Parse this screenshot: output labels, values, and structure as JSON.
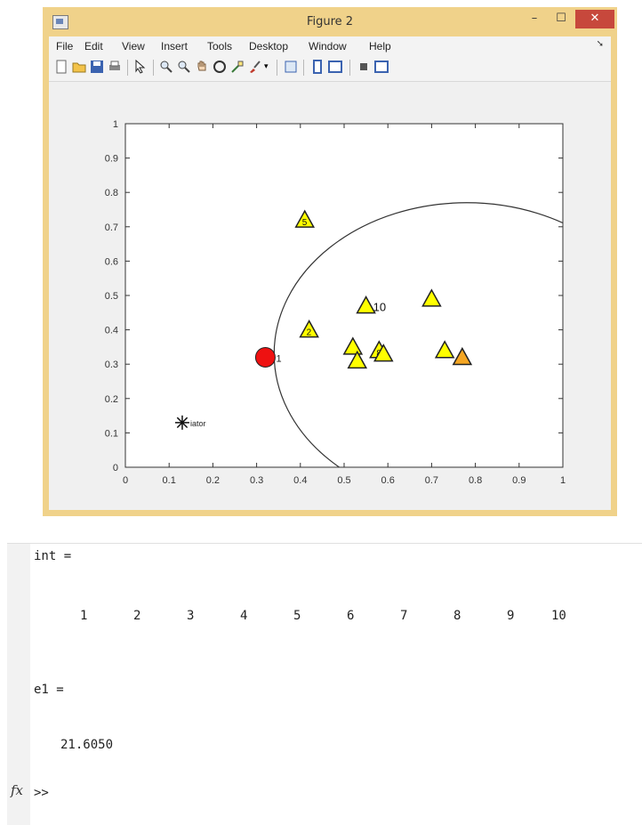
{
  "window": {
    "title": "Figure 2"
  },
  "menu": {
    "items": [
      "File",
      "Edit",
      "View",
      "Insert",
      "Tools",
      "Desktop",
      "Window",
      "Help"
    ]
  },
  "toolbar": {
    "icons": [
      "new-figure-icon",
      "open-file-icon",
      "save-icon",
      "print-icon",
      "edit-plot-icon",
      "zoom-in-icon",
      "zoom-out-icon",
      "pan-icon",
      "rotate-3d-icon",
      "data-cursor-icon",
      "brush-icon",
      "link-plot-icon",
      "colorbar-icon",
      "legend-icon",
      "hide-plot-tools-icon",
      "show-plot-tools-icon"
    ]
  },
  "chart_data": {
    "type": "scatter",
    "title": "",
    "xlabel": "",
    "ylabel": "",
    "xlim": [
      0,
      1
    ],
    "ylim": [
      0,
      1
    ],
    "x_ticks": [
      "0",
      "0.1",
      "0.2",
      "0.3",
      "0.4",
      "0.5",
      "0.6",
      "0.7",
      "0.8",
      "0.9",
      "1"
    ],
    "y_ticks": [
      "0",
      "0.1",
      "0.2",
      "0.3",
      "0.4",
      "0.5",
      "0.6",
      "0.7",
      "0.8",
      "0.9",
      "1"
    ],
    "grid": false,
    "circle": {
      "center": [
        0.78,
        0.33
      ],
      "radius": 0.44
    },
    "initiator": {
      "x": 0.13,
      "y": 0.13,
      "label": "iator"
    },
    "head_node": {
      "x": 0.32,
      "y": 0.32,
      "label": "1"
    },
    "nodes": [
      {
        "x": 0.41,
        "y": 0.72,
        "label": "5",
        "color": "#ffff00"
      },
      {
        "x": 0.42,
        "y": 0.4,
        "label": "2",
        "color": "#ffff00"
      },
      {
        "x": 0.52,
        "y": 0.35,
        "label": "",
        "color": "#ffff00"
      },
      {
        "x": 0.53,
        "y": 0.31,
        "label": "",
        "color": "#ffff00"
      },
      {
        "x": 0.55,
        "y": 0.47,
        "label": "10",
        "color": "#ffff00"
      },
      {
        "x": 0.58,
        "y": 0.34,
        "label": "8",
        "color": "#ffff00"
      },
      {
        "x": 0.59,
        "y": 0.33,
        "label": "",
        "color": "#ffff00"
      },
      {
        "x": 0.7,
        "y": 0.49,
        "label": "",
        "color": "#ffff00"
      },
      {
        "x": 0.73,
        "y": 0.34,
        "label": "",
        "color": "#ffff00"
      },
      {
        "x": 0.77,
        "y": 0.32,
        "label": "",
        "color": "#f5a623"
      }
    ]
  },
  "console": {
    "int_label": "int =",
    "int_values": [
      "1",
      "2",
      "3",
      "4",
      "5",
      "6",
      "7",
      "8",
      "9",
      "10"
    ],
    "e1_label": "e1 =",
    "e1_value": "21.6050",
    "fx_symbol": "fx",
    "prompt": ">>"
  }
}
